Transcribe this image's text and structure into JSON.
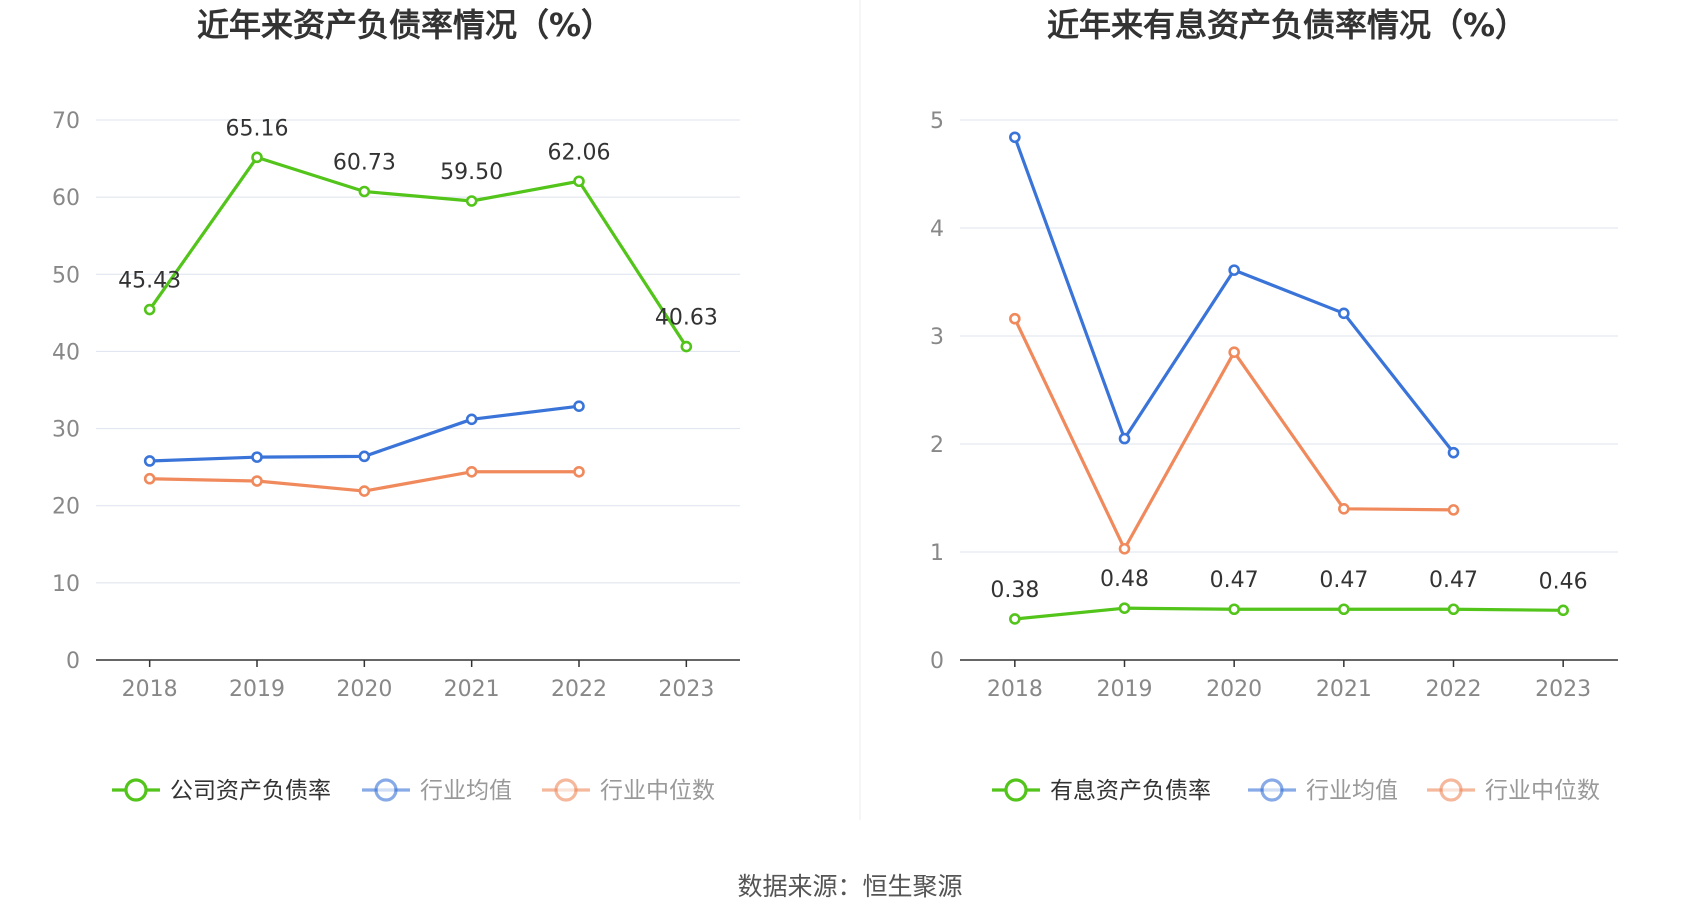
{
  "source_label": "数据来源：恒生聚源",
  "colors": {
    "green": "#52c41a",
    "blue": "#3a74d9",
    "orange": "#f08a5d",
    "grid": "#dde3ee",
    "axis": "#333333",
    "tick": "#888888",
    "title": "#333333"
  },
  "chart_data": [
    {
      "type": "line",
      "title": "近年来资产负债率情况（%）",
      "categories": [
        "2018",
        "2019",
        "2020",
        "2021",
        "2022",
        "2023"
      ],
      "ylim": [
        0,
        70
      ],
      "yticks": [
        0,
        10,
        20,
        30,
        40,
        50,
        60,
        70
      ],
      "grid": true,
      "legend_position": "bottom",
      "series": [
        {
          "name": "公司资产负债率",
          "color": "#52c41a",
          "values": [
            45.43,
            65.16,
            60.73,
            59.5,
            62.06,
            40.63
          ],
          "labels": [
            "45.43",
            "65.16",
            "60.73",
            "59.50",
            "62.06",
            "40.63"
          ]
        },
        {
          "name": "行业均值",
          "color": "#3a74d9",
          "values": [
            25.8,
            26.3,
            26.4,
            31.2,
            32.9,
            null
          ]
        },
        {
          "name": "行业中位数",
          "color": "#f08a5d",
          "values": [
            23.5,
            23.2,
            21.9,
            24.4,
            24.4,
            null
          ]
        }
      ]
    },
    {
      "type": "line",
      "title": "近年来有息资产负债率情况（%）",
      "categories": [
        "2018",
        "2019",
        "2020",
        "2021",
        "2022",
        "2023"
      ],
      "ylim": [
        0,
        5
      ],
      "yticks": [
        0,
        1,
        2,
        3,
        4,
        5
      ],
      "grid": true,
      "legend_position": "bottom",
      "series": [
        {
          "name": "有息资产负债率",
          "color": "#52c41a",
          "values": [
            0.38,
            0.48,
            0.47,
            0.47,
            0.47,
            0.46
          ],
          "labels": [
            "0.38",
            "0.48",
            "0.47",
            "0.47",
            "0.47",
            "0.46"
          ]
        },
        {
          "name": "行业均值",
          "color": "#3a74d9",
          "values": [
            4.84,
            2.05,
            3.61,
            3.21,
            1.92,
            null
          ]
        },
        {
          "name": "行业中位数",
          "color": "#f08a5d",
          "values": [
            3.16,
            1.03,
            2.85,
            1.4,
            1.39,
            null
          ]
        }
      ]
    }
  ]
}
